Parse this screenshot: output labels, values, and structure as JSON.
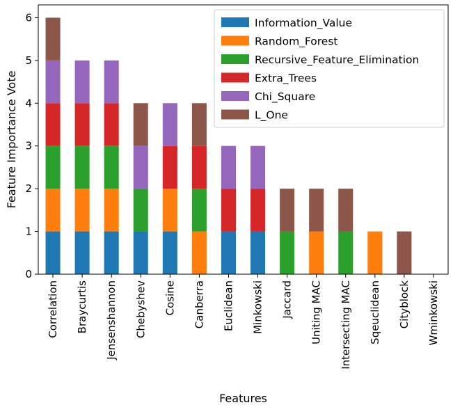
{
  "chart_data": {
    "type": "bar",
    "stacked": true,
    "title": "",
    "xlabel": "Features",
    "ylabel": "Feature Importance Vote",
    "ylim": [
      0,
      6.3
    ],
    "yticks": [
      0,
      1,
      2,
      3,
      4,
      5,
      6
    ],
    "grid": false,
    "legend_position": "top-right",
    "categories": [
      "Correlation",
      "Braycurtis",
      "Jensenshannon",
      "Chebyshev",
      "Cosine",
      "Canberra",
      "Euclidean",
      "Minkowski",
      "Jaccard",
      "Uniting MAC",
      "Intersecting MAC",
      "Sqeuclidean",
      "Cityblock",
      "Wminkowski"
    ],
    "series": [
      {
        "name": "Information_Value",
        "color": "#1f77b4",
        "values": [
          1,
          1,
          1,
          1,
          1,
          0,
          1,
          1,
          0,
          0,
          0,
          0,
          0,
          0
        ]
      },
      {
        "name": "Random_Forest",
        "color": "#ff7f0e",
        "values": [
          1,
          1,
          1,
          0,
          1,
          1,
          0,
          0,
          0,
          1,
          0,
          1,
          0,
          0
        ]
      },
      {
        "name": "Recursive_Feature_Elimination",
        "color": "#2ca02c",
        "values": [
          1,
          1,
          1,
          1,
          0,
          1,
          0,
          0,
          1,
          0,
          1,
          0,
          0,
          0
        ]
      },
      {
        "name": "Extra_Trees",
        "color": "#d62728",
        "values": [
          1,
          1,
          1,
          0,
          1,
          1,
          1,
          1,
          0,
          0,
          0,
          0,
          0,
          0
        ]
      },
      {
        "name": "Chi_Square",
        "color": "#9467bd",
        "values": [
          1,
          1,
          1,
          1,
          1,
          0,
          1,
          1,
          0,
          0,
          0,
          0,
          0,
          0
        ]
      },
      {
        "name": "L_One",
        "color": "#8c564b",
        "values": [
          1,
          0,
          0,
          1,
          0,
          1,
          0,
          0,
          1,
          1,
          1,
          0,
          1,
          0
        ]
      }
    ]
  }
}
